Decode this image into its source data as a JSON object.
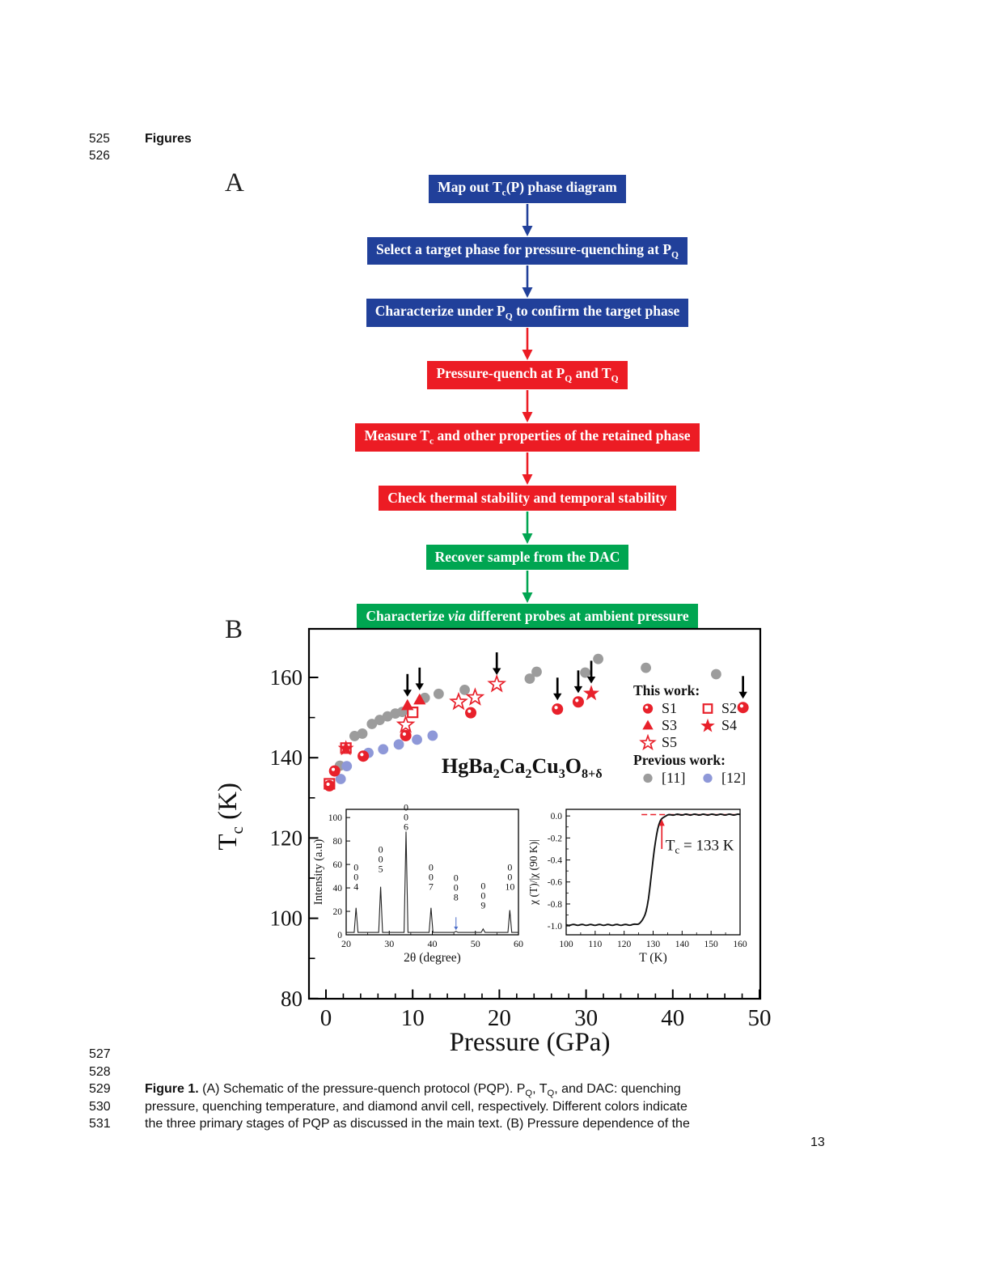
{
  "page": {
    "number": "13"
  },
  "header": {
    "line_number_1": "525",
    "title": "Figures",
    "line_number_2": "526"
  },
  "colors": {
    "blue": "#21409A",
    "red": "#EC1C24",
    "green": "#00A551",
    "marker_red": "#E8212B",
    "gray": "#9C9C9C",
    "light_blue": "#8E98D8",
    "peak_label_blue": "#4A6CC8",
    "black": "#111111"
  },
  "panel_a": {
    "label": "A",
    "steps": [
      {
        "color": "blue",
        "arrow": "blue",
        "parts": [
          {
            "t": "Map out T"
          },
          {
            "t": "c",
            "sub": 1
          },
          {
            "t": "(P) phase diagram"
          }
        ]
      },
      {
        "color": "blue",
        "arrow": "blue",
        "parts": [
          {
            "t": "Select a target phase for pressure-quenching at P"
          },
          {
            "t": "Q",
            "sub": 1
          }
        ]
      },
      {
        "color": "blue",
        "arrow": "red",
        "parts": [
          {
            "t": "Characterize under P"
          },
          {
            "t": "Q",
            "sub": 1
          },
          {
            "t": " to confirm the target phase"
          }
        ]
      },
      {
        "color": "red",
        "arrow": "red",
        "parts": [
          {
            "t": "Pressure-quench at P"
          },
          {
            "t": "Q",
            "sub": 1
          },
          {
            "t": " and T"
          },
          {
            "t": "Q",
            "sub": 1
          }
        ]
      },
      {
        "color": "red",
        "arrow": "red",
        "parts": [
          {
            "t": "Measure T"
          },
          {
            "t": "c",
            "sub": 1
          },
          {
            "t": " and other properties of the retained phase"
          }
        ]
      },
      {
        "color": "red",
        "arrow": "green",
        "parts": [
          {
            "t": "Check thermal stability and temporal stability"
          }
        ]
      },
      {
        "color": "green",
        "arrow": "green",
        "parts": [
          {
            "t": "Recover sample from the DAC"
          }
        ]
      },
      {
        "color": "green",
        "arrow": null,
        "parts": [
          {
            "t": "Characterize "
          },
          {
            "t": "via",
            "i": 1
          },
          {
            "t": " different probes at ambient pressure"
          }
        ]
      }
    ]
  },
  "panel_b": {
    "label": "B",
    "ylabel_parts": [
      {
        "t": "T"
      },
      {
        "t": "c",
        "sub": 1
      },
      {
        "t": " (K)"
      }
    ],
    "formula_parts": [
      {
        "t": "HgBa"
      },
      {
        "t": "2",
        "sub": 1
      },
      {
        "t": "Ca"
      },
      {
        "t": "2",
        "sub": 1
      },
      {
        "t": "Cu"
      },
      {
        "t": "3",
        "sub": 1
      },
      {
        "t": "O"
      },
      {
        "t": "8+δ",
        "sub": 1
      }
    ]
  },
  "chart_data": [
    {
      "type": "scatter",
      "title": "Pressure dependence of Tc for HgBa2Ca2Cu3O8+delta",
      "xlabel": "Pressure (GPa)",
      "ylabel": "Tc (K)",
      "xlim": [
        0,
        50
      ],
      "ylim": [
        80,
        168
      ],
      "x_major_ticks": [
        0,
        10,
        20,
        30,
        40,
        50
      ],
      "x_minor_step": 2,
      "y_major_ticks": [
        80,
        100,
        120,
        140,
        160
      ],
      "y_minor_ticks": [
        90,
        110,
        130,
        150
      ],
      "legend_position": "right",
      "series": [
        {
          "name": "S1",
          "marker": "ball-red",
          "points": [
            [
              0.4,
              133.0
            ],
            [
              1.0,
              136.7
            ],
            [
              4.3,
              140.4
            ],
            [
              9.2,
              145.5
            ],
            [
              16.7,
              151.2
            ],
            [
              26.7,
              152.1
            ],
            [
              29.1,
              153.9
            ],
            [
              48.1,
              152.5
            ]
          ]
        },
        {
          "name": "S2",
          "marker": "open-square-red",
          "points": [
            [
              0.4,
              133.5
            ],
            [
              2.3,
              142.4
            ],
            [
              10.0,
              151.3
            ]
          ]
        },
        {
          "name": "S3",
          "marker": "triangle-red",
          "points": [
            [
              9.4,
              153.0
            ],
            [
              10.8,
              154.4
            ]
          ]
        },
        {
          "name": "S4",
          "marker": "star-red",
          "points": [
            [
              2.3,
              142.4
            ],
            [
              30.6,
              156.1
            ]
          ]
        },
        {
          "name": "S5",
          "marker": "open-star-red",
          "points": [
            [
              9.2,
              148.3
            ],
            [
              15.3,
              154.0
            ],
            [
              17.2,
              155.1
            ],
            [
              19.7,
              158.4
            ]
          ]
        },
        {
          "name": "[11]",
          "marker": "circle-gray",
          "points": [
            [
              1.6,
              138.0
            ],
            [
              3.3,
              145.4
            ],
            [
              4.2,
              146.0
            ],
            [
              5.3,
              148.4
            ],
            [
              6.2,
              149.4
            ],
            [
              7.1,
              150.3
            ],
            [
              8.0,
              151.0
            ],
            [
              8.8,
              151.4
            ],
            [
              11.4,
              154.9
            ],
            [
              13.0,
              155.9
            ],
            [
              16.0,
              156.9
            ],
            [
              23.5,
              159.7
            ],
            [
              24.3,
              161.4
            ],
            [
              29.9,
              161.2
            ],
            [
              31.4,
              164.6
            ],
            [
              36.9,
              162.4
            ],
            [
              45.0,
              160.8
            ]
          ]
        },
        {
          "name": "[12]",
          "marker": "circle-blue",
          "points": [
            [
              1.7,
              134.7
            ],
            [
              2.4,
              137.9
            ],
            [
              4.9,
              141.2
            ],
            [
              6.6,
              142.1
            ],
            [
              8.4,
              143.3
            ],
            [
              10.5,
              144.5
            ],
            [
              12.3,
              145.5
            ]
          ]
        }
      ],
      "annotation_arrows": [
        [
          9.4,
          155.2
        ],
        [
          10.8,
          156.8
        ],
        [
          19.7,
          160.6
        ],
        [
          26.7,
          154.3
        ],
        [
          29.1,
          156.1
        ],
        [
          30.6,
          158.5
        ],
        [
          48.1,
          154.7
        ]
      ],
      "legend": {
        "this_work": "This work:",
        "previous_work": "Previous work:",
        "rows": [
          [
            "S1",
            "S2"
          ],
          [
            "S3",
            "S4"
          ],
          [
            "S5"
          ]
        ],
        "prev_rows": [
          [
            "[11]",
            "[12]"
          ]
        ]
      }
    },
    {
      "type": "line",
      "title": "XRD inset",
      "xlabel": "2θ (degree)",
      "ylabel": "Intensity (a.u)",
      "xlim": [
        20,
        60
      ],
      "ylim": [
        0,
        107
      ],
      "x_major_ticks": [
        20,
        30,
        40,
        50,
        60
      ],
      "x_minor_step": 5,
      "y_major_ticks": [
        0,
        20,
        40,
        60,
        80,
        100
      ],
      "baseline": 2,
      "peaks": [
        {
          "t": 22.3,
          "h": 23,
          "digits": [
            "0",
            "0",
            "4"
          ],
          "label_top": 55
        },
        {
          "t": 28.0,
          "h": 41,
          "digits": [
            "0",
            "0",
            "5"
          ],
          "label_top": 70
        },
        {
          "t": 33.9,
          "h": 88,
          "digits": [
            "0",
            "0",
            "6"
          ],
          "label_top": 106
        },
        {
          "t": 39.7,
          "h": 23,
          "digits": [
            "0",
            "0",
            "7"
          ],
          "label_top": 55
        },
        {
          "t": 45.5,
          "h": 3,
          "digits": [
            "0",
            "0",
            "8"
          ],
          "label_top": 46,
          "arrow": true
        },
        {
          "t": 51.8,
          "h": 5,
          "digits": [
            "0",
            "0",
            "9"
          ],
          "label_top": 39
        },
        {
          "t": 58.0,
          "h": 21,
          "digits": [
            "0",
            "0",
            "10"
          ],
          "label_top": 55
        }
      ]
    },
    {
      "type": "line",
      "title": "Susceptibility inset",
      "xlabel": "T (K)",
      "ylabel": "χ (T)/|χ (90 K)|",
      "xlim": [
        100,
        160
      ],
      "ylim": [
        -1.08,
        0.06
      ],
      "x_major_ticks": [
        100,
        110,
        120,
        130,
        140,
        150,
        160
      ],
      "x_minor_step": 5,
      "y_major_ticks": [
        0.0,
        -0.2,
        -0.4,
        -0.6,
        -0.8,
        -1.0
      ],
      "transition": {
        "midpoint": 129.6,
        "width": 1.05,
        "low": -0.99,
        "high": 0.012
      },
      "tc_value": 133,
      "tc_annotation_parts": [
        {
          "t": "T"
        },
        {
          "t": "c",
          "sub": 1
        },
        {
          "t": " = 133 K"
        }
      ]
    }
  ],
  "caption": {
    "rows": [
      {
        "num": "527",
        "parts": []
      },
      {
        "num": "528",
        "parts": []
      },
      {
        "num": "529",
        "parts": [
          {
            "t": "Figure 1.",
            "b": 1
          },
          {
            "t": " (A) Schematic of the pressure-quench protocol (PQP). P"
          },
          {
            "t": "Q",
            "sub": 1
          },
          {
            "t": ", T"
          },
          {
            "t": "Q",
            "sub": 1
          },
          {
            "t": ", and DAC: quenching"
          }
        ]
      },
      {
        "num": "530",
        "parts": [
          {
            "t": "pressure, quenching temperature, and diamond anvil cell, respectively. Different colors indicate"
          }
        ]
      },
      {
        "num": "531",
        "parts": [
          {
            "t": "the three primary stages of PQP as discussed in the main text. (B) Pressure dependence of the"
          }
        ]
      }
    ]
  }
}
